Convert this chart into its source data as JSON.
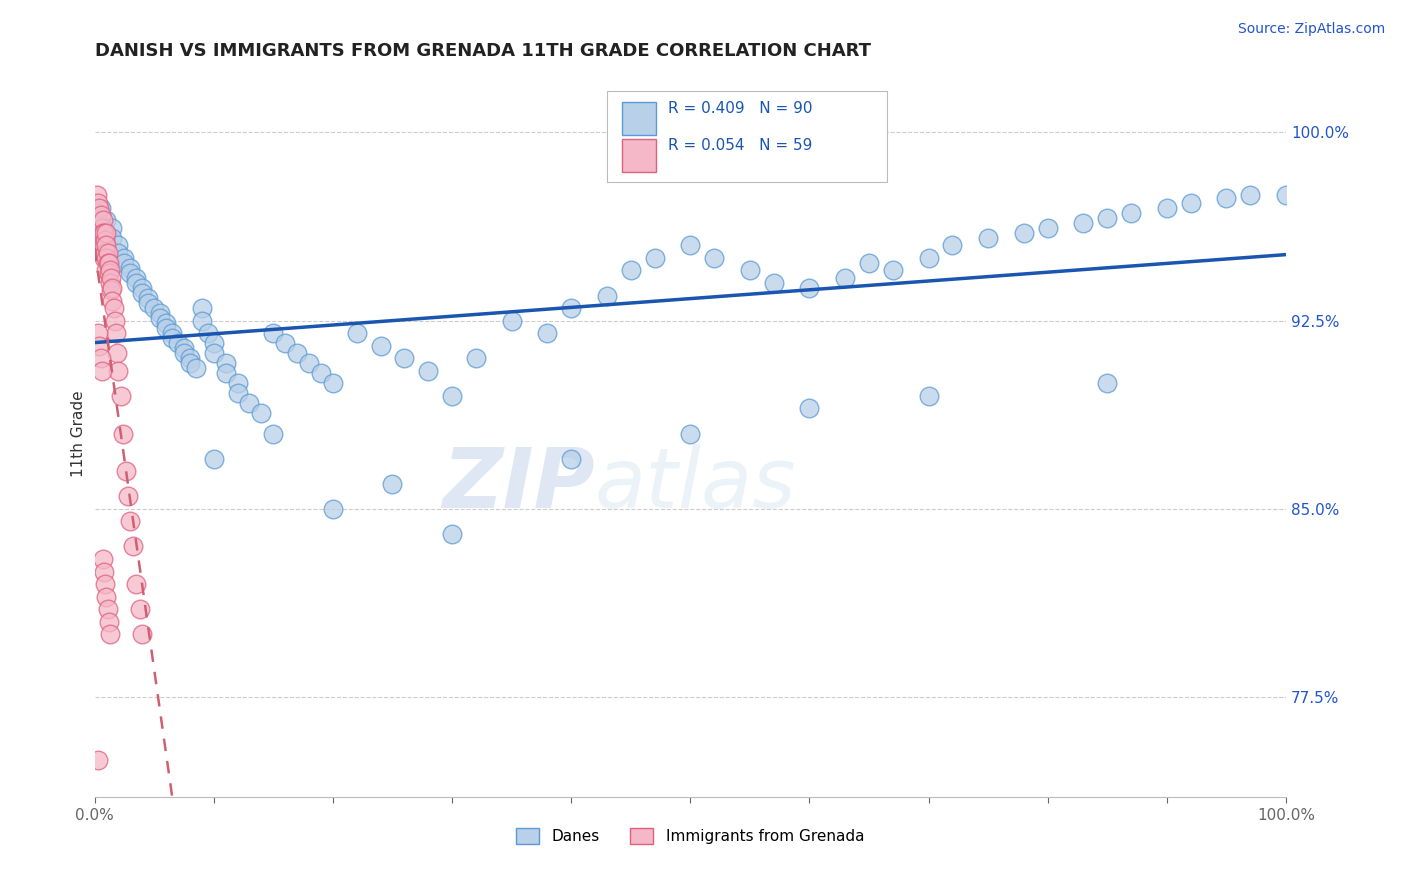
{
  "title": "DANISH VS IMMIGRANTS FROM GRENADA 11TH GRADE CORRELATION CHART",
  "source_text": "Source: ZipAtlas.com",
  "ylabel": "11th Grade",
  "xlim": [
    0.0,
    1.0
  ],
  "ylim": [
    0.735,
    1.025
  ],
  "x_ticks": [
    0.0,
    0.1,
    0.2,
    0.3,
    0.4,
    0.5,
    0.6,
    0.7,
    0.8,
    0.9,
    1.0
  ],
  "x_tick_labels": [
    "0.0%",
    "",
    "",
    "",
    "",
    "",
    "",
    "",
    "",
    "",
    "100.0%"
  ],
  "y_ticks_right": [
    0.775,
    0.85,
    0.925,
    1.0
  ],
  "y_tick_labels_right": [
    "77.5%",
    "85.0%",
    "92.5%",
    "100.0%"
  ],
  "danes_color": "#b8d0e8",
  "danes_edge_color": "#5b9bd5",
  "immigrants_color": "#f4b8c8",
  "immigrants_edge_color": "#e06080",
  "danes_R": 0.409,
  "danes_N": 90,
  "immigrants_R": 0.054,
  "immigrants_N": 59,
  "trend_danes_color": "#1a56b0",
  "trend_immigrants_color": "#d06070",
  "legend_R_color": "#1a56b0",
  "legend_text_color": "#222222",
  "watermark_zip": "ZIP",
  "watermark_atlas": "atlas",
  "danes_x": [
    0.005,
    0.01,
    0.01,
    0.015,
    0.015,
    0.02,
    0.02,
    0.025,
    0.025,
    0.03,
    0.03,
    0.035,
    0.035,
    0.04,
    0.04,
    0.045,
    0.045,
    0.05,
    0.055,
    0.055,
    0.06,
    0.06,
    0.065,
    0.065,
    0.07,
    0.075,
    0.075,
    0.08,
    0.08,
    0.085,
    0.09,
    0.09,
    0.095,
    0.1,
    0.1,
    0.11,
    0.11,
    0.12,
    0.12,
    0.13,
    0.14,
    0.15,
    0.16,
    0.17,
    0.18,
    0.19,
    0.2,
    0.22,
    0.24,
    0.26,
    0.28,
    0.3,
    0.32,
    0.35,
    0.38,
    0.4,
    0.43,
    0.45,
    0.47,
    0.5,
    0.52,
    0.55,
    0.57,
    0.6,
    0.63,
    0.65,
    0.67,
    0.7,
    0.72,
    0.75,
    0.78,
    0.8,
    0.83,
    0.85,
    0.87,
    0.9,
    0.92,
    0.95,
    0.97,
    1.0,
    0.1,
    0.15,
    0.2,
    0.25,
    0.3,
    0.4,
    0.5,
    0.6,
    0.7,
    0.85
  ],
  "danes_y": [
    0.97,
    0.965,
    0.96,
    0.962,
    0.958,
    0.955,
    0.952,
    0.95,
    0.948,
    0.946,
    0.944,
    0.942,
    0.94,
    0.938,
    0.936,
    0.934,
    0.932,
    0.93,
    0.928,
    0.926,
    0.924,
    0.922,
    0.92,
    0.918,
    0.916,
    0.914,
    0.912,
    0.91,
    0.908,
    0.906,
    0.93,
    0.925,
    0.92,
    0.916,
    0.912,
    0.908,
    0.904,
    0.9,
    0.896,
    0.892,
    0.888,
    0.92,
    0.916,
    0.912,
    0.908,
    0.904,
    0.9,
    0.92,
    0.915,
    0.91,
    0.905,
    0.895,
    0.91,
    0.925,
    0.92,
    0.93,
    0.935,
    0.945,
    0.95,
    0.955,
    0.95,
    0.945,
    0.94,
    0.938,
    0.942,
    0.948,
    0.945,
    0.95,
    0.955,
    0.958,
    0.96,
    0.962,
    0.964,
    0.966,
    0.968,
    0.97,
    0.972,
    0.974,
    0.975,
    0.975,
    0.87,
    0.88,
    0.85,
    0.86,
    0.84,
    0.87,
    0.88,
    0.89,
    0.895,
    0.9
  ],
  "immigrants_x": [
    0.002,
    0.002,
    0.003,
    0.003,
    0.004,
    0.004,
    0.005,
    0.005,
    0.005,
    0.006,
    0.006,
    0.007,
    0.007,
    0.007,
    0.008,
    0.008,
    0.008,
    0.009,
    0.009,
    0.01,
    0.01,
    0.01,
    0.01,
    0.011,
    0.011,
    0.012,
    0.012,
    0.013,
    0.013,
    0.014,
    0.014,
    0.015,
    0.015,
    0.016,
    0.017,
    0.018,
    0.019,
    0.02,
    0.022,
    0.024,
    0.026,
    0.028,
    0.03,
    0.032,
    0.035,
    0.038,
    0.04,
    0.003,
    0.004,
    0.005,
    0.006,
    0.007,
    0.008,
    0.009,
    0.01,
    0.011,
    0.012,
    0.013,
    0.003
  ],
  "immigrants_y": [
    0.975,
    0.968,
    0.972,
    0.965,
    0.97,
    0.963,
    0.967,
    0.96,
    0.955,
    0.962,
    0.958,
    0.965,
    0.96,
    0.955,
    0.96,
    0.955,
    0.95,
    0.957,
    0.952,
    0.96,
    0.955,
    0.95,
    0.945,
    0.952,
    0.948,
    0.948,
    0.944,
    0.945,
    0.94,
    0.942,
    0.937,
    0.938,
    0.933,
    0.93,
    0.925,
    0.92,
    0.912,
    0.905,
    0.895,
    0.88,
    0.865,
    0.855,
    0.845,
    0.835,
    0.82,
    0.81,
    0.8,
    0.92,
    0.915,
    0.91,
    0.905,
    0.83,
    0.825,
    0.82,
    0.815,
    0.81,
    0.805,
    0.8,
    0.75
  ]
}
